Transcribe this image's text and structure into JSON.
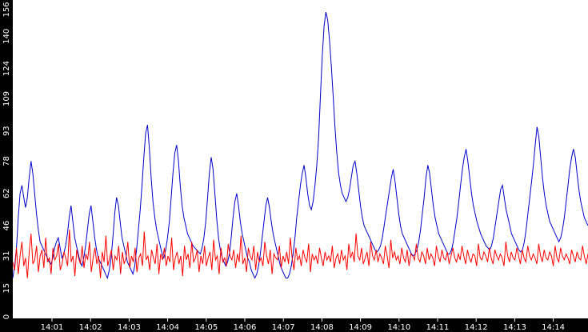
{
  "chart_data": {
    "type": "line",
    "title": "",
    "xlabel": "",
    "ylabel": "",
    "ylim": [
      0,
      156
    ],
    "y_ticks": [
      "0",
      "15",
      "31",
      "46",
      "62",
      "78",
      "93",
      "109",
      "124",
      "140",
      "156"
    ],
    "x_ticks": [
      "14:01",
      "14:02",
      "14:03",
      "14:04",
      "14:05",
      "14:06",
      "14:07",
      "14:08",
      "14:09",
      "14:10",
      "14:11",
      "14:12",
      "14:13",
      "14:14"
    ],
    "grid": false,
    "legend": "none",
    "colors": {
      "background": "#ffffff",
      "frame": "#000000",
      "series_1": "#0000cc",
      "series_2": "#ff0000"
    },
    "series": [
      {
        "color": "#0000cc",
        "values": [
          20,
          26,
          35,
          50,
          62,
          66,
          60,
          55,
          60,
          70,
          78,
          72,
          62,
          52,
          44,
          38,
          36,
          34,
          32,
          30,
          28,
          27,
          30,
          35,
          38,
          40,
          35,
          30,
          32,
          36,
          42,
          50,
          56,
          48,
          40,
          36,
          32,
          28,
          26,
          30,
          36,
          44,
          52,
          56,
          48,
          40,
          34,
          30,
          28,
          26,
          24,
          22,
          20,
          24,
          30,
          40,
          52,
          60,
          56,
          48,
          40,
          36,
          32,
          28,
          26,
          24,
          22,
          26,
          34,
          44,
          54,
          66,
          80,
          92,
          96,
          85,
          70,
          58,
          50,
          44,
          40,
          36,
          32,
          30,
          34,
          40,
          48,
          60,
          72,
          82,
          86,
          78,
          66,
          56,
          50,
          46,
          42,
          40,
          38,
          36,
          35,
          34,
          33,
          32,
          35,
          40,
          48,
          60,
          72,
          80,
          74,
          62,
          50,
          40,
          34,
          30,
          28,
          26,
          28,
          32,
          40,
          50,
          58,
          62,
          56,
          48,
          42,
          38,
          34,
          30,
          28,
          24,
          22,
          20,
          22,
          26,
          32,
          40,
          48,
          56,
          60,
          55,
          48,
          42,
          38,
          34,
          30,
          26,
          24,
          22,
          20,
          20,
          22,
          26,
          32,
          40,
          50,
          58,
          66,
          72,
          76,
          70,
          62,
          56,
          54,
          58,
          66,
          76,
          90,
          110,
          130,
          145,
          152,
          148,
          138,
          125,
          110,
          95,
          82,
          72,
          66,
          62,
          60,
          58,
          60,
          64,
          70,
          76,
          78,
          72,
          64,
          56,
          50,
          46,
          44,
          42,
          40,
          38,
          36,
          34,
          33,
          34,
          36,
          40,
          46,
          52,
          58,
          64,
          70,
          74,
          68,
          60,
          52,
          46,
          42,
          40,
          38,
          36,
          34,
          32,
          31,
          32,
          34,
          38,
          44,
          52,
          60,
          70,
          76,
          72,
          64,
          56,
          50,
          46,
          42,
          40,
          38,
          36,
          34,
          32,
          32,
          34,
          38,
          44,
          50,
          58,
          66,
          74,
          80,
          84,
          78,
          70,
          62,
          56,
          52,
          48,
          45,
          42,
          40,
          38,
          36,
          35,
          34,
          36,
          40,
          46,
          52,
          58,
          64,
          66,
          60,
          54,
          50,
          46,
          42,
          40,
          38,
          36,
          34,
          33,
          34,
          38,
          44,
          52,
          60,
          68,
          76,
          86,
          95,
          90,
          80,
          70,
          62,
          56,
          52,
          48,
          46,
          44,
          42,
          40,
          38,
          40,
          44,
          50,
          58,
          66,
          74,
          80,
          84,
          80,
          72,
          64,
          58,
          54,
          50,
          48,
          46
        ]
      },
      {
        "color": "#ff0000",
        "values": [
          28,
          24,
          35,
          22,
          31,
          38,
          26,
          30,
          20,
          33,
          42,
          27,
          29,
          36,
          23,
          31,
          34,
          25,
          40,
          28,
          30,
          22,
          35,
          29,
          31,
          37,
          24,
          27,
          33,
          30,
          26,
          44,
          28,
          31,
          21,
          34,
          30,
          27,
          36,
          25,
          32,
          29,
          38,
          23,
          30,
          35,
          27,
          31,
          20,
          33,
          28,
          41,
          26,
          30,
          34,
          24,
          31,
          29,
          36,
          22,
          33,
          27,
          30,
          38,
          25,
          31,
          28,
          35,
          23,
          30,
          32,
          26,
          43,
          29,
          31,
          24,
          34,
          30,
          27,
          37,
          22,
          32,
          29,
          35,
          26,
          31,
          28,
          40,
          24,
          30,
          33,
          27,
          31,
          21,
          36,
          29,
          32,
          25,
          38,
          28,
          30,
          34,
          23,
          31,
          27,
          36,
          26,
          30,
          33,
          24,
          39,
          29,
          31,
          22,
          35,
          28,
          30,
          26,
          37,
          31,
          29,
          34,
          25,
          32,
          28,
          41,
          27,
          30,
          23,
          35,
          31,
          29,
          36,
          24,
          33,
          28,
          30,
          26,
          38,
          31,
          27,
          34,
          22,
          32,
          30,
          29,
          36,
          25,
          31,
          28,
          33,
          27,
          40,
          30,
          24,
          35,
          29,
          31,
          26,
          34,
          30,
          28,
          37,
          23,
          32,
          29,
          31,
          27,
          35,
          30,
          26,
          33,
          29,
          31,
          28,
          36,
          25,
          30,
          32,
          27,
          34,
          29,
          31,
          24,
          37,
          30,
          33,
          28,
          42,
          31,
          29,
          35,
          27,
          30,
          33,
          26,
          38,
          31,
          29,
          34,
          28,
          32,
          30,
          27,
          36,
          31,
          25,
          39,
          30,
          33,
          29,
          31,
          27,
          35,
          30,
          28,
          34,
          26,
          32,
          31,
          29,
          37,
          30,
          28,
          33,
          31,
          27,
          35,
          29,
          32,
          30,
          26,
          36,
          31,
          28,
          34,
          30,
          29,
          33,
          27,
          31,
          35,
          30,
          28,
          32,
          29,
          36,
          31,
          27,
          34,
          30,
          28,
          32,
          31,
          26,
          37,
          30,
          29,
          33,
          31,
          28,
          35,
          30,
          27,
          34,
          31,
          29,
          32,
          30,
          26,
          38,
          31,
          28,
          33,
          30,
          29,
          35,
          31,
          27,
          34,
          30,
          28,
          36,
          31,
          29,
          32,
          30,
          27,
          37,
          31,
          28,
          34,
          30,
          29,
          33,
          31,
          26,
          36,
          30,
          28,
          35,
          31,
          29,
          32,
          30,
          27,
          34,
          31,
          28,
          33,
          30,
          29,
          36,
          31,
          27,
          32
        ]
      }
    ]
  }
}
